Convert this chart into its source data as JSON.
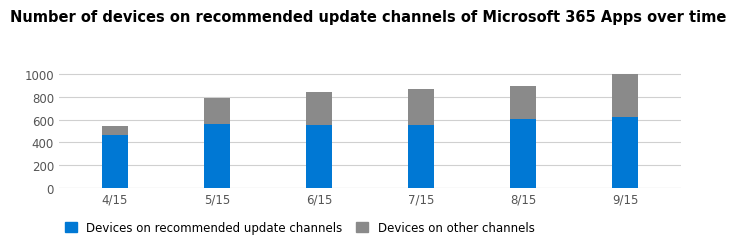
{
  "title": "Number of devices on recommended update channels of Microsoft 365 Apps over time",
  "categories": [
    "4/15",
    "5/15",
    "6/15",
    "7/15",
    "8/15",
    "9/15"
  ],
  "blue_values": [
    460,
    560,
    555,
    550,
    605,
    625
  ],
  "gray_values": [
    80,
    230,
    285,
    320,
    290,
    375
  ],
  "blue_color": "#0078d4",
  "gray_color": "#8a8a8a",
  "ylim": [
    0,
    1050
  ],
  "yticks": [
    0,
    200,
    400,
    600,
    800,
    1000
  ],
  "legend_labels": [
    "Devices on recommended update channels",
    "Devices on other channels"
  ],
  "background_color": "#ffffff",
  "grid_color": "#d0d0d0",
  "title_fontsize": 10.5,
  "legend_fontsize": 8.5,
  "tick_fontsize": 8.5,
  "bar_width": 0.25
}
